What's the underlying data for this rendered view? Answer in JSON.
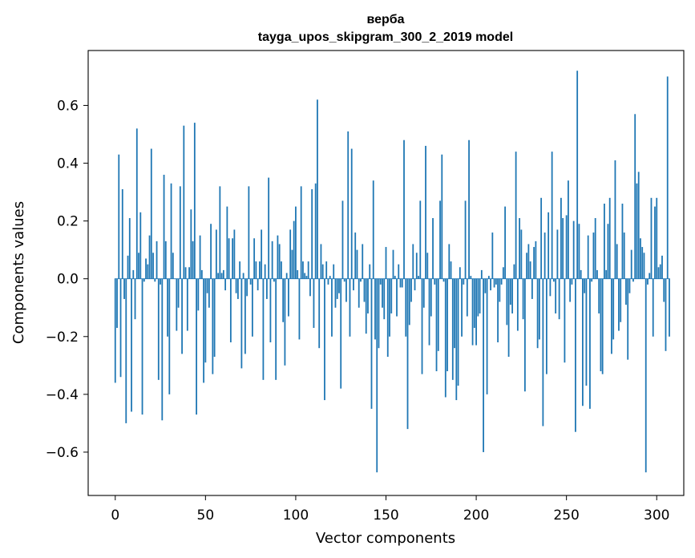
{
  "chart_data": {
    "type": "bar",
    "title": "верба",
    "subtitle": "tayga_upos_skipgram_300_2_2019 model",
    "xlabel": "Vector components",
    "ylabel": "Components values",
    "xlim": [
      -15,
      315
    ],
    "ylim": [
      -0.75,
      0.79
    ],
    "x_ticks": [
      0,
      50,
      100,
      150,
      200,
      250,
      300
    ],
    "x_tick_labels": [
      "0",
      "50",
      "100",
      "150",
      "200",
      "250",
      "300"
    ],
    "y_ticks": [
      -0.6,
      -0.4,
      -0.2,
      0.0,
      0.2,
      0.4,
      0.6
    ],
    "y_tick_labels": [
      "−0.6",
      "−0.4",
      "−0.2",
      "0.0",
      "0.2",
      "0.4",
      "0.6"
    ],
    "grid": false,
    "bar_color": "#1f77b4",
    "values": [
      -0.36,
      -0.17,
      0.43,
      -0.34,
      0.31,
      -0.07,
      -0.5,
      0.08,
      0.21,
      -0.46,
      0.03,
      -0.14,
      0.52,
      0.09,
      0.23,
      -0.47,
      -0.01,
      0.07,
      0.05,
      0.15,
      0.45,
      0.09,
      -0.01,
      0.13,
      -0.35,
      -0.02,
      -0.49,
      0.36,
      0.13,
      -0.2,
      -0.4,
      0.33,
      0.09,
      0.0,
      -0.18,
      -0.1,
      0.32,
      -0.26,
      0.53,
      0.04,
      -0.18,
      0.04,
      0.24,
      0.13,
      0.54,
      -0.47,
      -0.11,
      0.15,
      0.03,
      -0.36,
      -0.29,
      -0.05,
      -0.1,
      0.19,
      -0.33,
      -0.27,
      0.17,
      0.02,
      0.32,
      0.02,
      0.03,
      -0.04,
      0.25,
      0.14,
      -0.22,
      0.14,
      0.17,
      -0.05,
      -0.07,
      0.06,
      -0.31,
      0.02,
      -0.26,
      -0.06,
      0.32,
      -0.02,
      -0.2,
      0.14,
      0.06,
      -0.04,
      0.06,
      0.17,
      -0.35,
      0.05,
      -0.07,
      0.35,
      -0.22,
      0.13,
      -0.01,
      -0.35,
      0.15,
      0.12,
      0.06,
      -0.15,
      -0.3,
      0.02,
      -0.13,
      0.17,
      0.1,
      0.2,
      0.25,
      0.03,
      -0.21,
      0.32,
      0.06,
      0.02,
      0.01,
      0.06,
      -0.06,
      0.31,
      -0.17,
      0.33,
      0.62,
      -0.24,
      0.12,
      0.05,
      -0.42,
      0.06,
      -0.02,
      0.01,
      -0.2,
      0.05,
      -0.1,
      -0.07,
      -0.05,
      -0.38,
      0.27,
      -0.01,
      -0.08,
      0.51,
      -0.2,
      0.45,
      -0.04,
      0.16,
      0.1,
      -0.1,
      -0.01,
      0.12,
      -0.08,
      -0.19,
      -0.12,
      0.05,
      -0.45,
      0.34,
      -0.21,
      -0.67,
      -0.24,
      -0.02,
      -0.1,
      -0.14,
      0.11,
      -0.27,
      -0.2,
      -0.12,
      0.1,
      0.01,
      -0.13,
      0.05,
      -0.03,
      -0.03,
      0.48,
      -0.2,
      -0.52,
      -0.16,
      -0.08,
      0.12,
      -0.04,
      0.09,
      0.01,
      0.27,
      -0.33,
      -0.1,
      0.46,
      0.09,
      -0.23,
      -0.13,
      0.21,
      -0.02,
      -0.32,
      -0.25,
      0.27,
      0.43,
      -0.01,
      -0.41,
      -0.32,
      0.12,
      0.06,
      -0.35,
      -0.24,
      -0.42,
      -0.37,
      0.04,
      -0.2,
      -0.02,
      0.27,
      -0.13,
      0.48,
      0.01,
      -0.23,
      -0.17,
      -0.23,
      -0.13,
      -0.12,
      0.03,
      -0.6,
      -0.05,
      -0.4,
      0.01,
      -0.04,
      0.16,
      -0.03,
      -0.02,
      -0.22,
      -0.08,
      -0.02,
      0.04,
      0.25,
      -0.16,
      -0.27,
      -0.09,
      -0.12,
      0.05,
      0.44,
      -0.18,
      0.21,
      0.17,
      -0.14,
      -0.39,
      0.09,
      0.12,
      0.06,
      -0.07,
      0.11,
      0.13,
      -0.24,
      -0.21,
      0.28,
      -0.51,
      0.16,
      -0.33,
      0.23,
      -0.06,
      0.44,
      -0.01,
      -0.12,
      0.17,
      -0.14,
      0.28,
      0.21,
      -0.29,
      0.22,
      0.34,
      -0.08,
      -0.02,
      0.2,
      -0.53,
      0.72,
      0.19,
      0.03,
      -0.44,
      -0.05,
      -0.37,
      0.15,
      -0.45,
      -0.01,
      0.16,
      0.21,
      0.03,
      -0.12,
      -0.32,
      -0.33,
      0.26,
      0.03,
      0.19,
      0.28,
      -0.26,
      -0.21,
      0.41,
      0.12,
      -0.18,
      -0.15,
      0.26,
      0.16,
      -0.09,
      -0.28,
      -0.05,
      0.1,
      -0.01,
      0.57,
      0.33,
      0.37,
      0.14,
      0.11,
      0.09,
      -0.67,
      -0.02,
      0.02,
      0.28,
      -0.2,
      0.25,
      0.28,
      0.04,
      0.05,
      0.08,
      -0.08,
      -0.25,
      0.7,
      -0.2
    ]
  }
}
